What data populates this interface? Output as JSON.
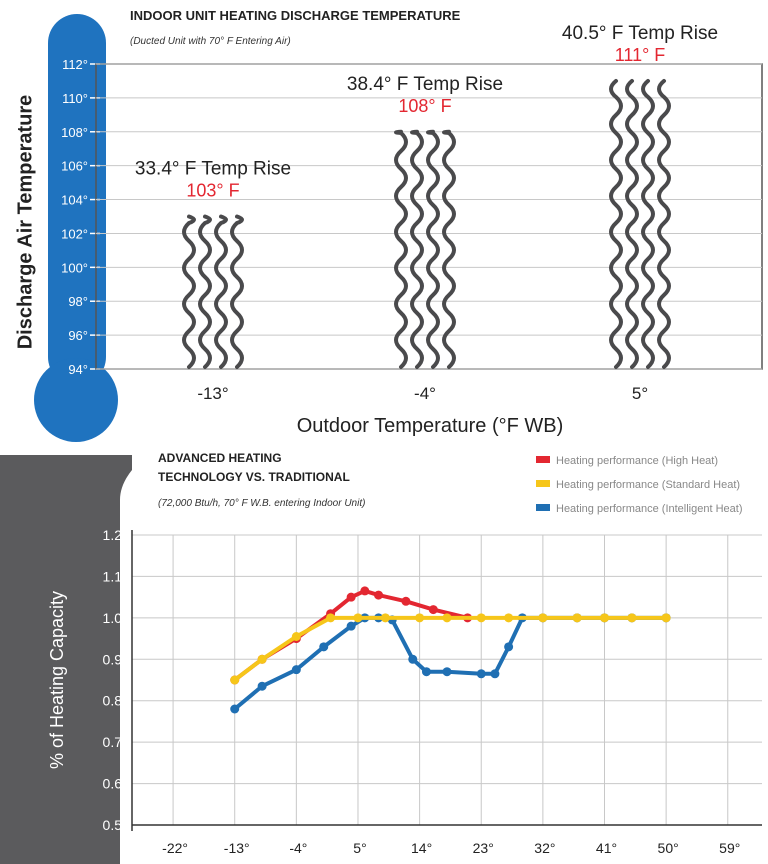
{
  "colors": {
    "thermo_blue": "#1f73bf",
    "bottle_gray": "#5b5b5d",
    "high_heat": "#e32731",
    "standard_heat": "#f6c61a",
    "intelligent_heat": "#1f6fb3",
    "rise_red": "#e32731",
    "grid": "#c8c8c8",
    "wave": "#4a4a4c"
  },
  "chart_data": [
    {
      "type": "bar",
      "title": "INDOOR UNIT HEATING DISCHARGE TEMPERATURE",
      "subtitle": "(Ducted Unit with 70° F Entering Air)",
      "xlabel": "Outdoor Temperature (°F WB)",
      "ylabel": "Discharge Air Temperature",
      "ylim": [
        94,
        112
      ],
      "y_ticks": [
        "112°",
        "110°",
        "108°",
        "106°",
        "104°",
        "102°",
        "100°",
        "98°",
        "96°",
        "94°"
      ],
      "categories": [
        "-13°",
        "-4°",
        "5°"
      ],
      "values": [
        103,
        108,
        111
      ],
      "labels": [
        "103° F",
        "108° F",
        "111° F"
      ],
      "temp_rise": [
        "33.4° F Temp Rise",
        "38.4° F Temp Rise",
        "40.5° F Temp Rise"
      ],
      "grid": true
    },
    {
      "type": "line",
      "title_lines": [
        "ADVANCED HEATING",
        "TECHNOLOGY VS. TRADITIONAL"
      ],
      "subtitle": "(72,000 Btu/h, 70° F W.B. entering Indoor Unit)",
      "xlabel": "",
      "ylabel": "% of Heating Capacity",
      "xlim": [
        -28,
        64
      ],
      "ylim": [
        0.5,
        1.2
      ],
      "x_ticks": [
        "-22°",
        "-13°",
        "-4°",
        "5°",
        "14°",
        "23°",
        "32°",
        "41°",
        "50°",
        "59°"
      ],
      "y_ticks": [
        "1.2",
        "1.1",
        "1.0",
        "0.9",
        "0.8",
        "0.7",
        "0.6",
        "0.5"
      ],
      "legend_position": "top-right",
      "grid": true,
      "series": [
        {
          "name": "Heating performance (High Heat)",
          "x": [
            -13,
            -9,
            -4,
            1,
            4,
            6,
            8,
            12,
            16,
            21
          ],
          "y": [
            0.85,
            0.9,
            0.95,
            1.01,
            1.05,
            1.065,
            1.055,
            1.04,
            1.02,
            1.0
          ]
        },
        {
          "name": "Heating performance (Standard Heat)",
          "x": [
            -13,
            -9,
            -4,
            1,
            5,
            9,
            14,
            18,
            23,
            27,
            32,
            37,
            41,
            45,
            50
          ],
          "y": [
            0.85,
            0.9,
            0.955,
            1.0,
            1.0,
            1.0,
            1.0,
            1.0,
            1.0,
            1.0,
            1.0,
            1.0,
            1.0,
            1.0,
            1.0
          ]
        },
        {
          "name": "Heating performance (Intelligent Heat)",
          "x": [
            -13,
            -9,
            -4,
            0,
            4,
            6,
            8,
            10,
            13,
            15,
            18,
            23,
            25,
            27,
            29,
            32,
            37,
            41,
            45,
            50
          ],
          "y": [
            0.78,
            0.835,
            0.875,
            0.93,
            0.98,
            1.0,
            1.0,
            0.995,
            0.9,
            0.87,
            0.87,
            0.865,
            0.865,
            0.93,
            1.0,
            1.0,
            1.0,
            1.0,
            1.0,
            1.0
          ]
        }
      ]
    }
  ]
}
